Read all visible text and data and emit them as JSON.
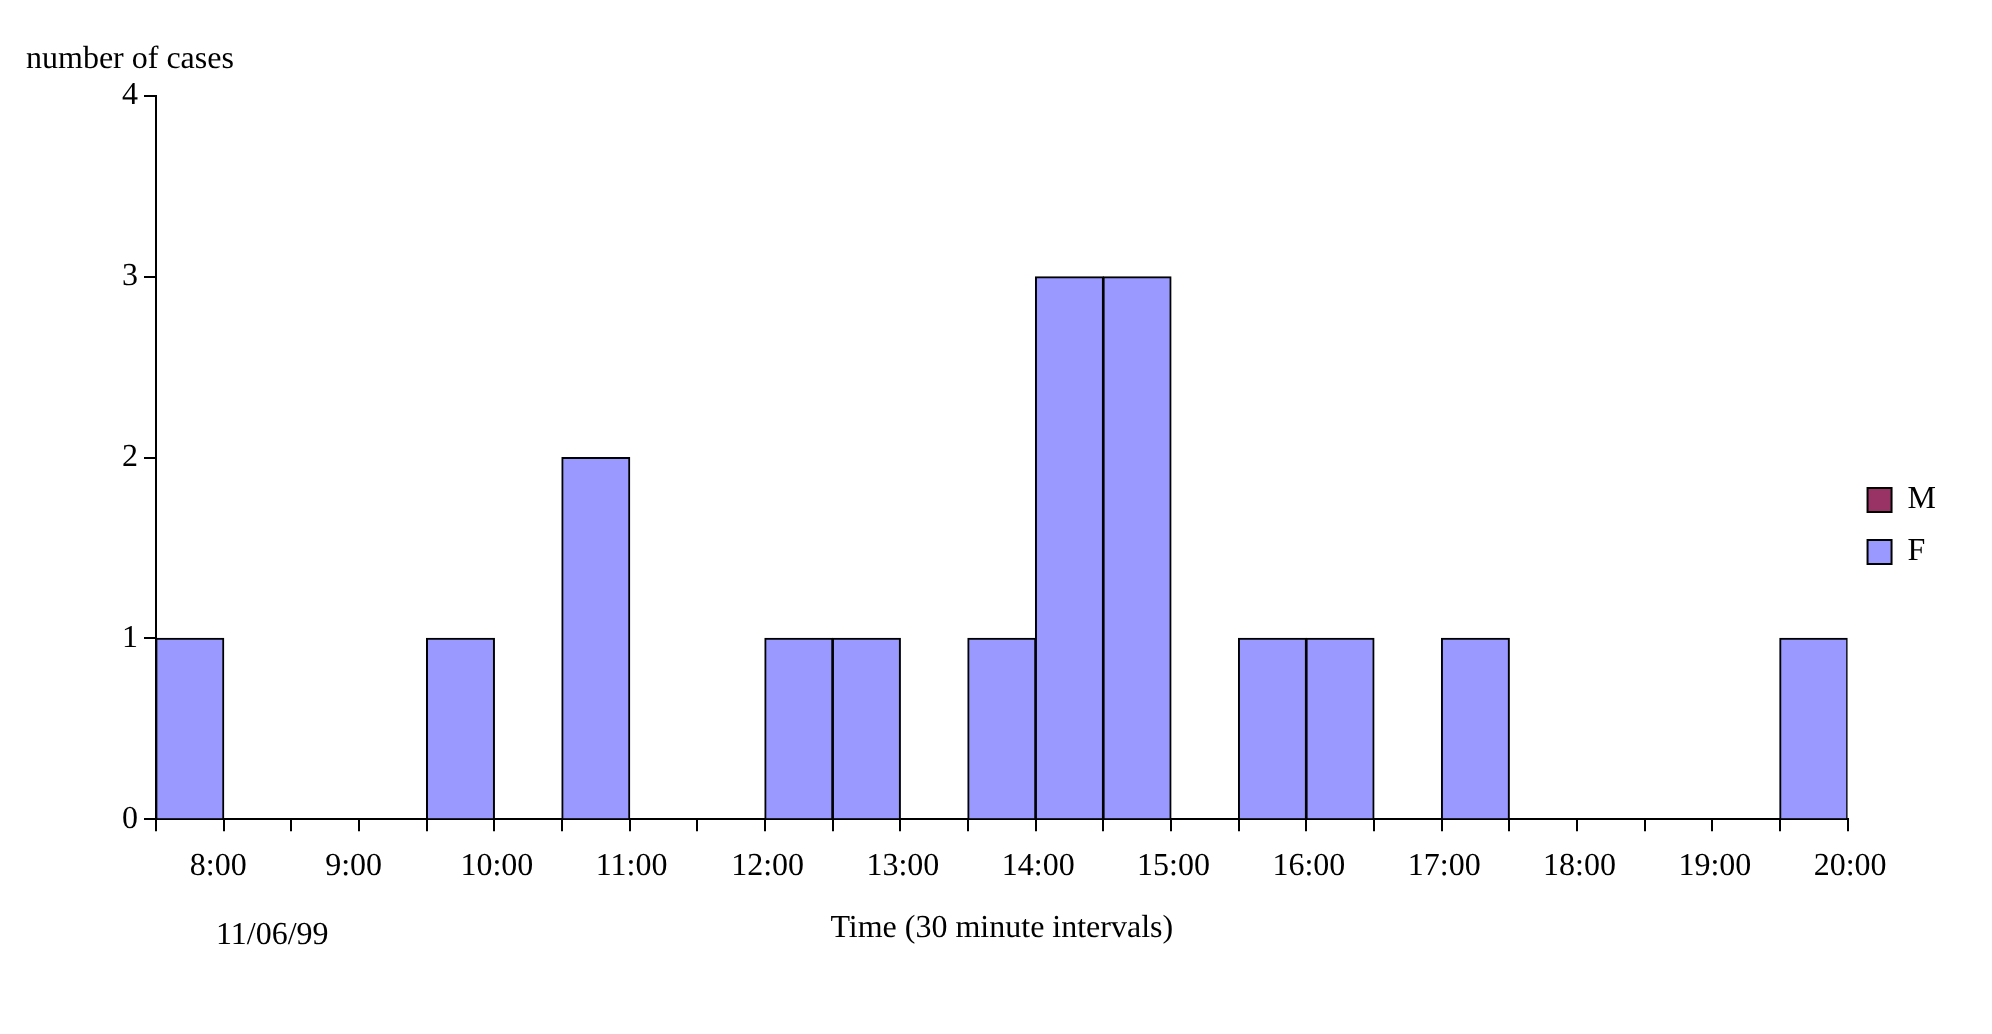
{
  "chart_data": {
    "type": "bar",
    "ylabel": "number of cases",
    "xlabel": "Time (30 minute intervals)",
    "annotations": [
      "11/06/99"
    ],
    "categories": [
      "8:00",
      null,
      "9:00",
      null,
      "10:00",
      null,
      "11:00",
      null,
      "12:00",
      null,
      "13:00",
      null,
      "14:00",
      null,
      "15:00",
      null,
      "16:00",
      null,
      "17:00",
      null,
      "18:00",
      null,
      "19:00",
      null,
      "20:00"
    ],
    "series": [
      {
        "name": "M",
        "color": "#993366",
        "values": [
          0,
          0,
          0,
          0,
          0,
          0,
          0,
          0,
          0,
          0,
          0,
          0,
          0,
          0,
          0,
          0,
          0,
          0,
          0,
          0,
          0,
          0,
          0,
          0,
          0
        ]
      },
      {
        "name": "F",
        "color": "#9999ff",
        "values": [
          1,
          0,
          0,
          0,
          1,
          0,
          2,
          0,
          0,
          1,
          1,
          0,
          1,
          3,
          3,
          0,
          1,
          1,
          0,
          1,
          0,
          0,
          0,
          0,
          1
        ]
      }
    ],
    "stacked": true,
    "ylim": [
      0,
      4
    ],
    "yticks": [
      0,
      1,
      2,
      3,
      4
    ],
    "grid": false,
    "legend": "right"
  }
}
